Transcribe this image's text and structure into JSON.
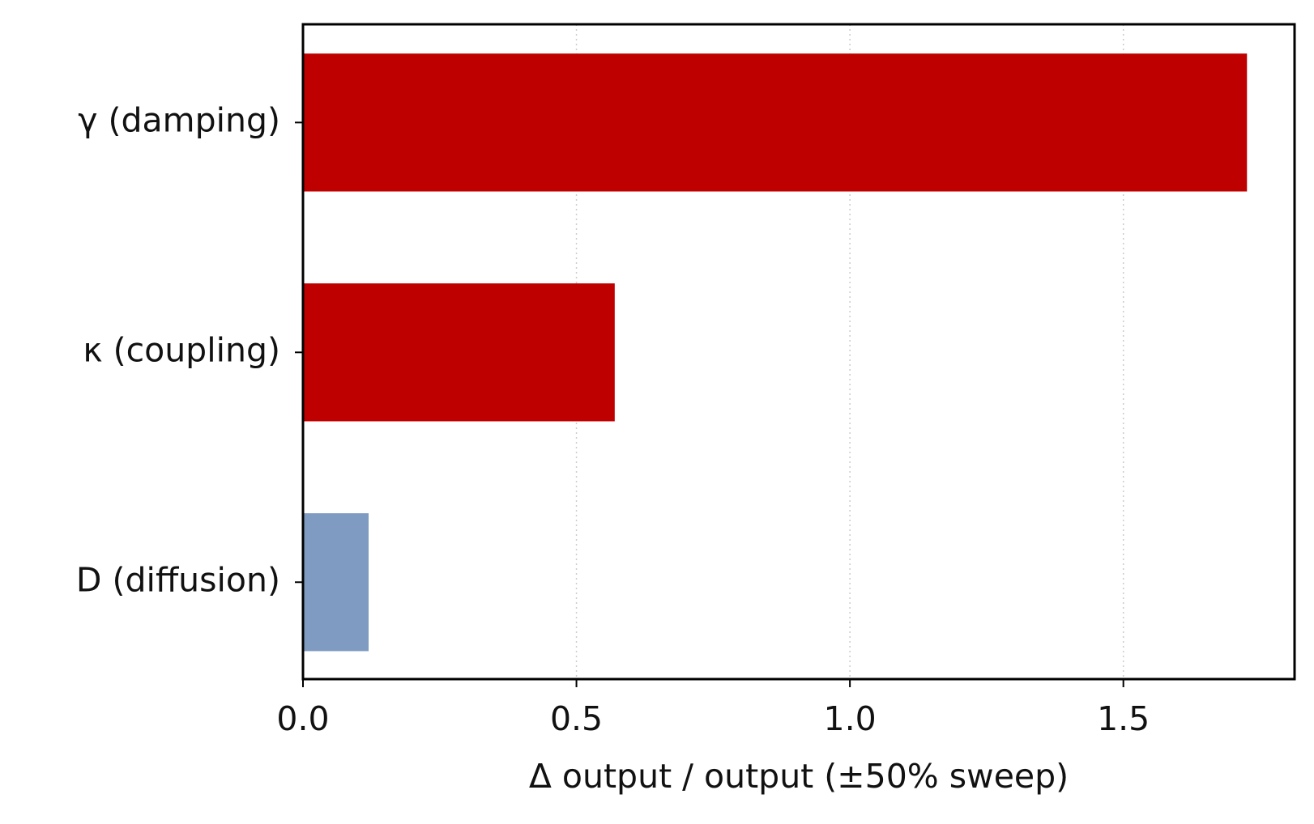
{
  "chart_data": {
    "type": "bar",
    "orientation": "horizontal",
    "categories": [
      "γ (damping)",
      "κ (coupling)",
      "D (diffusion)"
    ],
    "values": [
      1.726,
      0.57,
      0.12
    ],
    "colors": [
      "#bf0000",
      "#bf0000",
      "#7f9bc1"
    ],
    "xlabel": "Δ output / output  (±50% sweep)",
    "xlim": [
      0,
      1.813
    ],
    "xticks": [
      {
        "value": 0,
        "label": "0.0"
      },
      0.5,
      {
        "value": 1,
        "label": "1.0"
      },
      1.5
    ],
    "grid": true
  }
}
